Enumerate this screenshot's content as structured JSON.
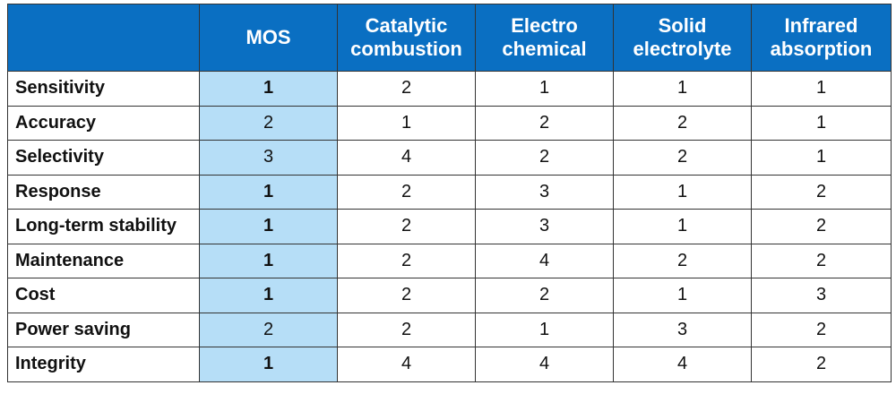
{
  "table": {
    "header": [
      "",
      "MOS",
      "Catalytic combustion",
      "Electro chemical",
      "Solid electrolyte",
      "Infrared absorption"
    ],
    "rows": [
      [
        "Sensitivity",
        1,
        2,
        1,
        1,
        1
      ],
      [
        "Accuracy",
        2,
        1,
        2,
        2,
        1
      ],
      [
        "Selectivity",
        3,
        4,
        2,
        2,
        1
      ],
      [
        "Response",
        1,
        2,
        3,
        1,
        2
      ],
      [
        "Long-term stability",
        1,
        2,
        3,
        1,
        2
      ],
      [
        "Maintenance",
        1,
        2,
        4,
        2,
        2
      ],
      [
        "Cost",
        1,
        2,
        2,
        1,
        3
      ],
      [
        "Power saving",
        2,
        2,
        1,
        3,
        2
      ],
      [
        "Integrity",
        1,
        4,
        4,
        4,
        2
      ]
    ],
    "mos_bold": [
      true,
      false,
      false,
      true,
      true,
      true,
      true,
      false,
      true
    ]
  }
}
